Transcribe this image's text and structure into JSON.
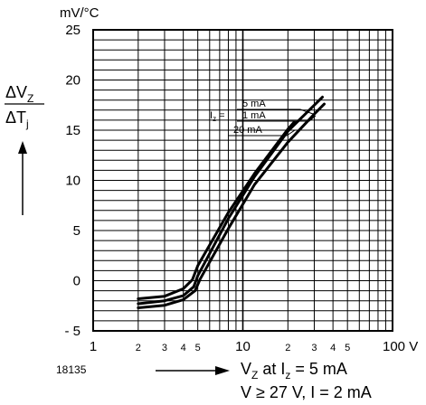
{
  "chart_data": {
    "type": "line",
    "title": "",
    "ylabel_unit": "mV/°C",
    "ylabel_parts": {
      "num_main": "ΔV",
      "num_sub": "Z",
      "den_main": "ΔT",
      "den_sub": "j"
    },
    "xscale": "log",
    "xlim": [
      1,
      100
    ],
    "ylim": [
      -5,
      25
    ],
    "y_major_ticks": [
      25,
      20,
      15,
      10,
      5,
      0,
      -5
    ],
    "y_tick_labels": [
      "25",
      "20",
      "15",
      "10",
      "5",
      "0",
      "- 5"
    ],
    "x_major_ticks": [
      {
        "value": 1,
        "label": "1"
      },
      {
        "value": 10,
        "label": "10"
      },
      {
        "value": 100,
        "label": "100 V"
      }
    ],
    "x_minor_ticks": [
      {
        "value": 2,
        "label": "2"
      },
      {
        "value": 3,
        "label": "3"
      },
      {
        "value": 4,
        "label": "4"
      },
      {
        "value": 5,
        "label": "5"
      },
      {
        "value": 20,
        "label": "2"
      },
      {
        "value": 30,
        "label": "3"
      },
      {
        "value": 40,
        "label": "4"
      },
      {
        "value": 50,
        "label": "5"
      }
    ],
    "grid": true,
    "grid_y_step": 1,
    "figure_number": "18135",
    "xlabel": {
      "line1_main": "V",
      "line1_sub": "Z",
      "line1_mid": " at I",
      "line1_sub2": "z",
      "line1_end": " = 5 mA",
      "line2": "V ≥ 27 V, I = 2 mA"
    },
    "legend": {
      "prefix_main": "I",
      "prefix_sub": "z",
      "prefix_eq": " =",
      "entries": [
        "5 mA",
        "1 mA",
        "20 mA"
      ]
    },
    "series": [
      {
        "name": "20 mA",
        "points": [
          [
            2,
            -1.8
          ],
          [
            3,
            -1.55
          ],
          [
            4,
            -0.8
          ],
          [
            4.6,
            0.1
          ],
          [
            5,
            1.5
          ],
          [
            8,
            6.8
          ],
          [
            12,
            10.7
          ],
          [
            20,
            15.1
          ],
          [
            22,
            15.8
          ]
        ]
      },
      {
        "name": "5 mA",
        "points": [
          [
            2,
            -2.3
          ],
          [
            3,
            -2
          ],
          [
            4,
            -1.5
          ],
          [
            4.7,
            -0.6
          ],
          [
            5,
            0.5
          ],
          [
            8,
            6.2
          ],
          [
            12,
            10.4
          ],
          [
            20,
            14.9
          ],
          [
            30,
            17.5
          ],
          [
            34,
            18.3
          ]
        ]
      },
      {
        "name": "1 mA",
        "points": [
          [
            2,
            -2.7
          ],
          [
            3,
            -2.45
          ],
          [
            4,
            -1.9
          ],
          [
            4.8,
            -1
          ],
          [
            5.2,
            0.2
          ],
          [
            8,
            5.2
          ],
          [
            12,
            9.6
          ],
          [
            20,
            13.8
          ],
          [
            30,
            16.6
          ],
          [
            35,
            17.6
          ]
        ]
      }
    ]
  }
}
